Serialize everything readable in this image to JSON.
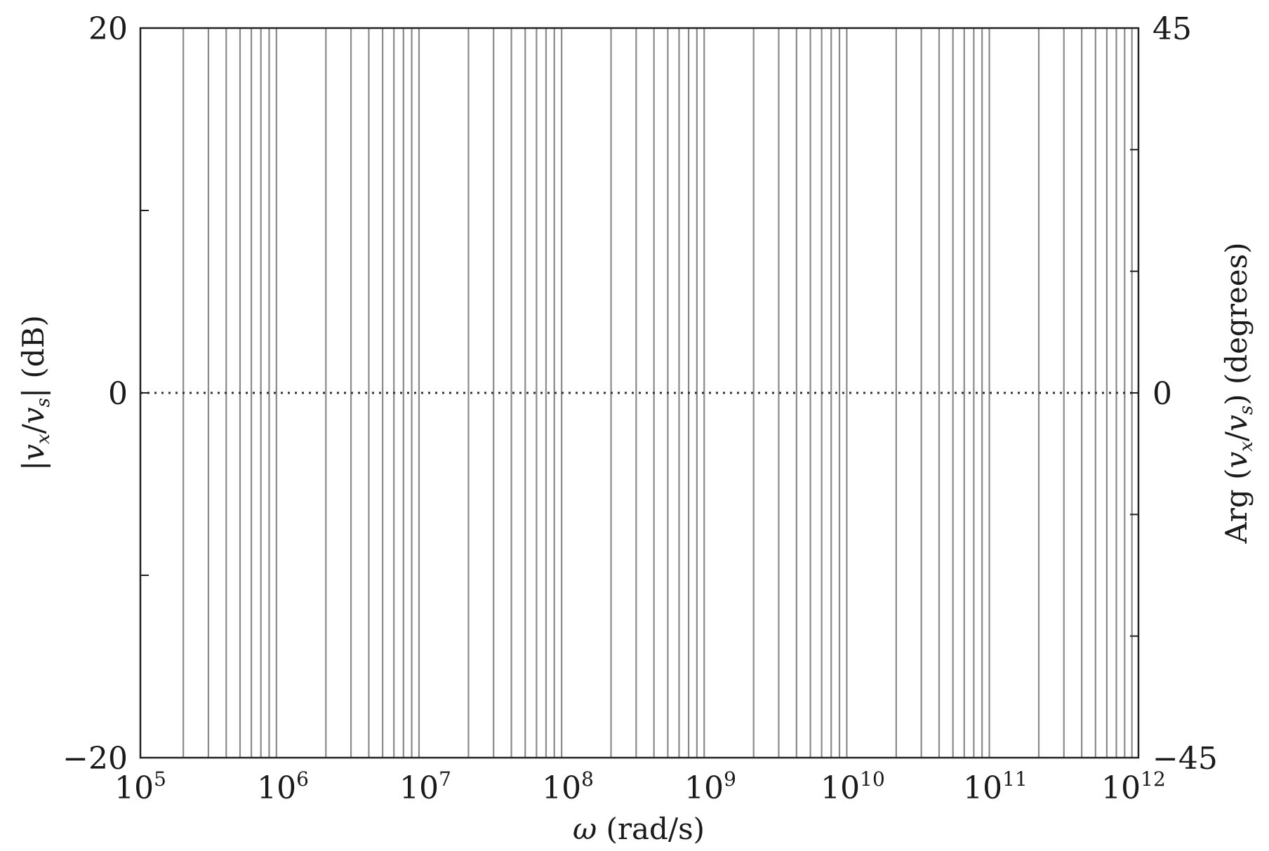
{
  "chart_data": {
    "type": "line",
    "x_scale": "log",
    "xlim": [
      100000,
      1000000000000
    ],
    "ylim_left": [
      -20,
      20
    ],
    "ylim_right": [
      -45,
      45
    ],
    "grid": "vertical minor decade lines",
    "x_ticks": [
      {
        "base": "10",
        "exp": "5"
      },
      {
        "base": "10",
        "exp": "6"
      },
      {
        "base": "10",
        "exp": "7"
      },
      {
        "base": "10",
        "exp": "8"
      },
      {
        "base": "10",
        "exp": "9"
      },
      {
        "base": "10",
        "exp": "10"
      },
      {
        "base": "10",
        "exp": "11"
      },
      {
        "base": "10",
        "exp": "12"
      }
    ],
    "y_left_ticks": [
      "20",
      "0",
      "−20"
    ],
    "y_right_ticks": [
      "45",
      "0",
      "−45"
    ],
    "xlabel": {
      "omega": "ω",
      "rest": " (rad/s)"
    },
    "ylabel_left": {
      "bar1": "|",
      "v1": "v",
      "s1": "x",
      "slash": "/",
      "v2": "v",
      "s2": "s",
      "rest": "| (dB)"
    },
    "ylabel_right": {
      "arg": "Arg",
      "open": " (",
      "v1": "v",
      "s1": "x",
      "slash": "/",
      "v2": "v",
      "s2": "s",
      "rest": ") (degrees)"
    },
    "series": [
      {
        "style": "dotted",
        "x": [
          100000,
          1000000000000
        ],
        "y": [
          0,
          0
        ]
      }
    ]
  }
}
